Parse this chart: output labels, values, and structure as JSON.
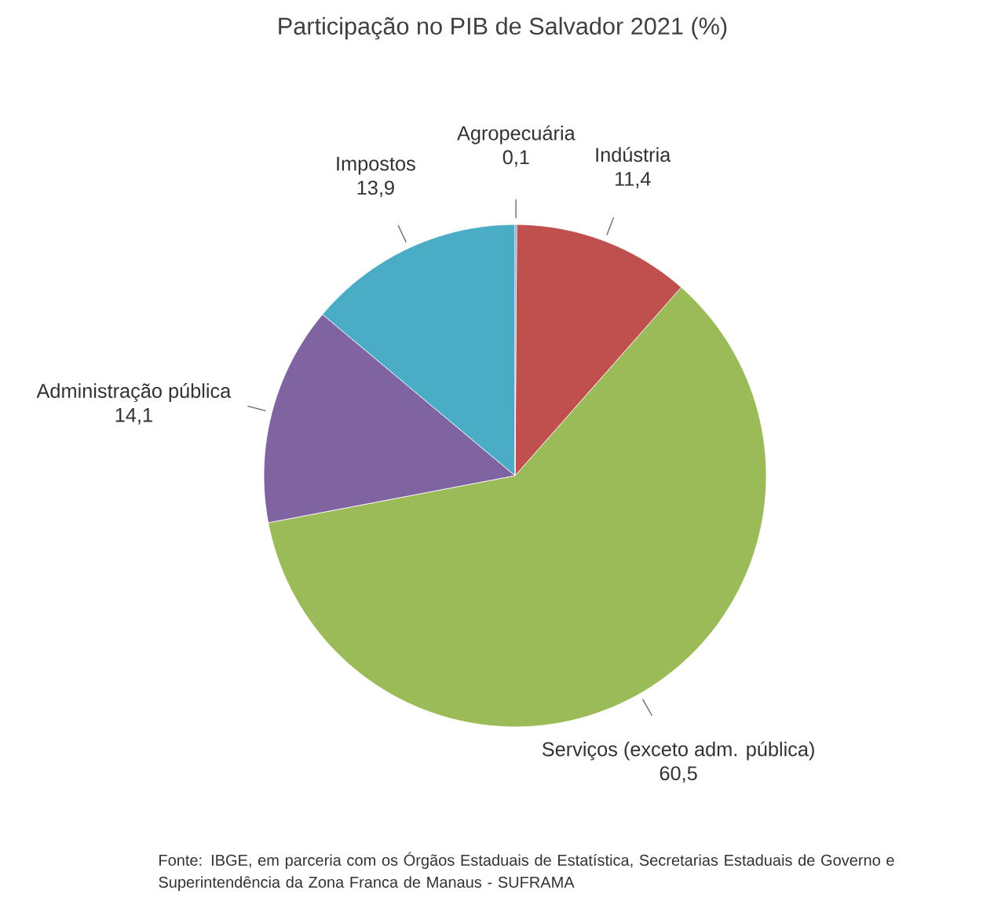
{
  "chart_data": {
    "type": "pie",
    "title": "Participação no PIB de Salvador 2021 (%)",
    "categories": [
      "Agropecuária",
      "Indústria",
      "Serviços (exceto adm. pública)",
      "Administração pública",
      "Impostos"
    ],
    "values": [
      0.1,
      11.4,
      60.5,
      14.1,
      13.9
    ],
    "value_labels": [
      "0,1",
      "11,4",
      "60,5",
      "14,1",
      "13,9"
    ],
    "colors": [
      "#4f81bd",
      "#c0504d",
      "#9bbb59",
      "#8064a2",
      "#4bacc6"
    ],
    "annotations": [
      "Fonte: IBGE, em parceria com os Órgãos Estaduais de Estatística, Secretarias Estaduais de Governo e Superintendência da Zona Franca de Manaus - SUFRAMA"
    ]
  }
}
